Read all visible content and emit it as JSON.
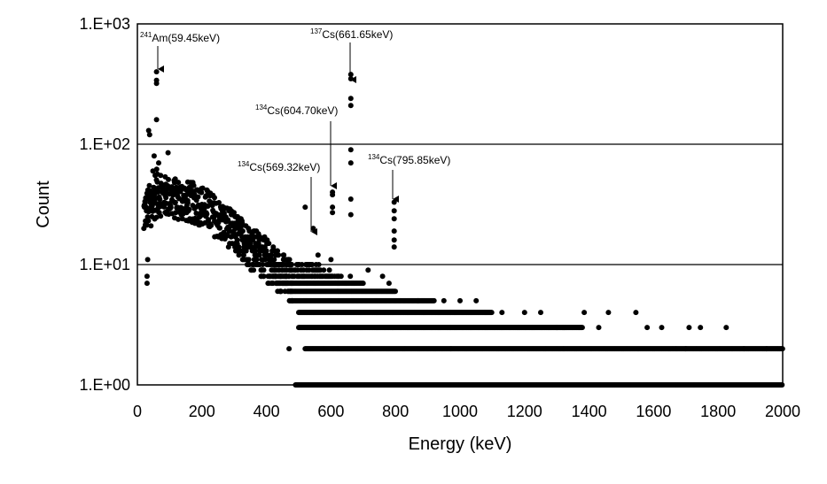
{
  "chart_data": {
    "type": "scatter",
    "title": "",
    "xlabel": "Energy (keV)",
    "ylabel": "Count",
    "xlim": [
      0,
      2000
    ],
    "ylim": [
      1,
      1000
    ],
    "y_scale": "log",
    "grid": "horizontal major gridlines",
    "legend": "none",
    "marker_color": "#000000",
    "x_ticks": [
      "0",
      "200",
      "400",
      "600",
      "800",
      "1000",
      "1200",
      "1400",
      "1600",
      "1800",
      "2000"
    ],
    "y_ticks": [
      "1.E+00",
      "1.E+01",
      "1.E+02",
      "1.E+03"
    ],
    "annotations": [
      {
        "sup": "241",
        "label": "Am(59.45keV)",
        "x": 59.45,
        "y": 400
      },
      {
        "sup": "137",
        "label": "Cs(661.65keV)",
        "x": 661.65,
        "y": 380
      },
      {
        "sup": "134",
        "label": "Cs(604.70keV)",
        "x": 604.7,
        "y": 40
      },
      {
        "sup": "134",
        "label": "Cs(569.32keV)",
        "x": 569.32,
        "y": 14
      },
      {
        "sup": "134",
        "label": "Cs(795.85keV)",
        "x": 795.85,
        "y": 33
      }
    ],
    "peaks": [
      {
        "x": 59.45,
        "values": [
          400,
          340,
          320,
          160
        ]
      },
      {
        "x": 661.65,
        "values": [
          380,
          350,
          240,
          210,
          90,
          70,
          35,
          26
        ]
      },
      {
        "x": 604.7,
        "values": [
          40,
          38,
          30,
          27
        ]
      },
      {
        "x": 795.85,
        "values": [
          33,
          28,
          24,
          19,
          16,
          14
        ]
      }
    ],
    "low_energy_points": [
      [
        30,
        7
      ],
      [
        30,
        8
      ],
      [
        32,
        11
      ],
      [
        35,
        130
      ],
      [
        38,
        120
      ],
      [
        45,
        25
      ],
      [
        48,
        60
      ],
      [
        52,
        80
      ],
      [
        55,
        55
      ],
      [
        60,
        62
      ],
      [
        66,
        70
      ],
      [
        72,
        55
      ],
      [
        80,
        45
      ],
      [
        95,
        85
      ],
      [
        20,
        20
      ],
      [
        25,
        23
      ],
      [
        28,
        28
      ],
      [
        40,
        33
      ],
      [
        42,
        21
      ],
      [
        50,
        40
      ]
    ],
    "sparse_points": [
      [
        470,
        2
      ],
      [
        520,
        30
      ],
      [
        545,
        20
      ],
      [
        560,
        12
      ],
      [
        600,
        11
      ],
      [
        660,
        8
      ],
      [
        715,
        9
      ],
      [
        760,
        8
      ],
      [
        780,
        7
      ],
      [
        870,
        5
      ],
      [
        950,
        5
      ],
      [
        1000,
        5
      ],
      [
        1050,
        5
      ],
      [
        1130,
        4
      ],
      [
        1200,
        4
      ],
      [
        1250,
        4
      ],
      [
        1300,
        3
      ],
      [
        1385,
        4
      ],
      [
        1430,
        3
      ],
      [
        1460,
        4
      ],
      [
        1545,
        4
      ],
      [
        1580,
        3
      ],
      [
        1625,
        3
      ],
      [
        1700,
        2
      ],
      [
        1710,
        3
      ],
      [
        1745,
        3
      ],
      [
        1825,
        3
      ],
      [
        1880,
        2
      ],
      [
        1950,
        2
      ]
    ],
    "continuum": {
      "base_x_range": [
        20,
        2000
      ],
      "level_1_x_range": [
        490,
        2000
      ],
      "level_2_x_range": [
        520,
        2000
      ],
      "level_3_x_range": [
        560,
        1380
      ],
      "level_4_x_range": [
        500,
        1100
      ],
      "level_5_x_range": [
        480,
        920
      ]
    }
  }
}
